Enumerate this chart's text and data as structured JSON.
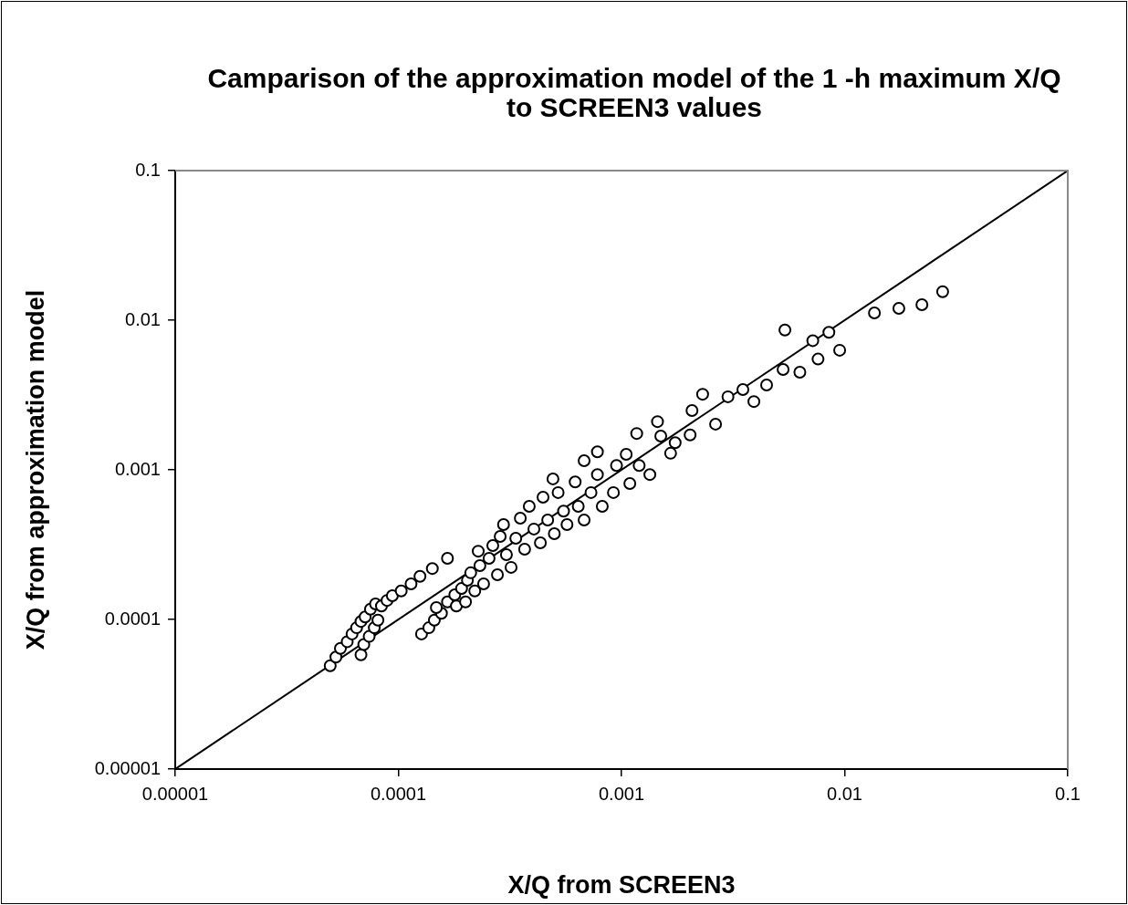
{
  "chart_data": {
    "type": "scatter",
    "title": "Camparison of the approximation model of the 1 -h maximum X/Q to SCREEN3 values",
    "xlabel": "X/Q from SCREEN3",
    "ylabel": "X/Q from approximation model",
    "log": "xy",
    "grid": false,
    "legend": false,
    "marker": "circle",
    "xlim": [
      1e-05,
      0.1
    ],
    "ylim": [
      1e-05,
      0.1
    ],
    "xticks": [
      {
        "value": 1e-05,
        "label": "0.00001"
      },
      {
        "value": 0.0001,
        "label": "0.0001"
      },
      {
        "value": 0.001,
        "label": "0.001"
      },
      {
        "value": 0.01,
        "label": "0.01"
      },
      {
        "value": 0.1,
        "label": "0.1"
      }
    ],
    "yticks": [
      {
        "value": 1e-05,
        "label": "0.00001"
      },
      {
        "value": 0.0001,
        "label": "0.0001"
      },
      {
        "value": 0.001,
        "label": "0.001"
      },
      {
        "value": 0.01,
        "label": "0.01"
      },
      {
        "value": 0.1,
        "label": "0.1"
      }
    ],
    "series": [
      {
        "color": "#000000",
        "x": [
          4.95e-05,
          5.25e-05,
          5.5e-05,
          5.9e-05,
          6.2e-05,
          6.5e-05,
          6.8e-05,
          7.1e-05,
          7.5e-05,
          7.9e-05,
          8.4e-05,
          8.9e-05,
          9.4e-05,
          0.000103,
          0.000114,
          0.000125,
          0.000142,
          0.000166,
          6.8e-05,
          7e-05,
          7.4e-05,
          7.8e-05,
          8.1e-05,
          0.000127,
          0.000137,
          0.000145,
          0.000156,
          0.000148,
          0.000166,
          0.000179,
          0.000182,
          0.000192,
          0.0002,
          0.000204,
          0.000211,
          0.00022,
          0.000232,
          0.000228,
          0.000241,
          0.000255,
          0.000265,
          0.000278,
          0.000286,
          0.000305,
          0.000296,
          0.00032,
          0.000336,
          0.000352,
          0.000368,
          0.000386,
          0.000405,
          0.000433,
          0.000445,
          0.000467,
          0.0005,
          0.00052,
          0.00055,
          0.00057,
          0.00062,
          0.00064,
          0.00068,
          0.00073,
          0.00078,
          0.00082,
          0.00092,
          0.00095,
          0.00105,
          0.00109,
          0.00117,
          0.0012,
          0.00134,
          0.00145,
          0.0015,
          0.00166,
          0.00174,
          0.00207,
          0.00203,
          0.00231,
          0.00264,
          0.003,
          0.0035,
          0.00392,
          0.00447,
          0.0053,
          0.0063,
          0.0076,
          0.0095,
          0.0054,
          0.0072,
          0.0085,
          0.0136,
          0.0175,
          0.0222,
          0.0275,
          0.00078,
          0.000493,
          0.00068
        ],
        "values": [
          4.9e-05,
          5.6e-05,
          6.4e-05,
          7.1e-05,
          8e-05,
          8.8e-05,
          9.7e-05,
          0.000104,
          0.000117,
          0.000127,
          0.000123,
          0.000134,
          0.000144,
          0.000155,
          0.000173,
          0.000194,
          0.000219,
          0.000256,
          5.8e-05,
          6.8e-05,
          7.7e-05,
          8.8e-05,
          9.9e-05,
          8e-05,
          8.8e-05,
          9.9e-05,
          0.00011,
          0.00012,
          0.000131,
          0.000146,
          0.000123,
          0.000161,
          0.000131,
          0.000183,
          0.000205,
          0.000155,
          0.000229,
          0.000286,
          0.000173,
          0.000256,
          0.000312,
          0.000199,
          0.000359,
          0.000271,
          0.000431,
          0.000223,
          0.000349,
          0.000475,
          0.000295,
          0.00057,
          0.000402,
          0.000325,
          0.000656,
          0.000462,
          0.000374,
          0.000705,
          0.00053,
          0.000431,
          0.00083,
          0.00057,
          0.000462,
          0.000705,
          0.00093,
          0.00057,
          0.000705,
          0.00107,
          0.00127,
          0.00081,
          0.00175,
          0.00107,
          0.00093,
          0.0021,
          0.00168,
          0.00129,
          0.00152,
          0.00249,
          0.00171,
          0.0032,
          0.00202,
          0.00308,
          0.00344,
          0.00286,
          0.00369,
          0.00469,
          0.00449,
          0.0055,
          0.0063,
          0.0086,
          0.0073,
          0.0083,
          0.0112,
          0.012,
          0.0127,
          0.0155,
          0.00132,
          0.00087,
          0.00115
        ]
      },
      {
        "type": "line",
        "color": "#000000",
        "marker": "none",
        "x": [
          1e-05,
          0.1
        ],
        "values": [
          1e-05,
          0.1
        ]
      }
    ]
  }
}
